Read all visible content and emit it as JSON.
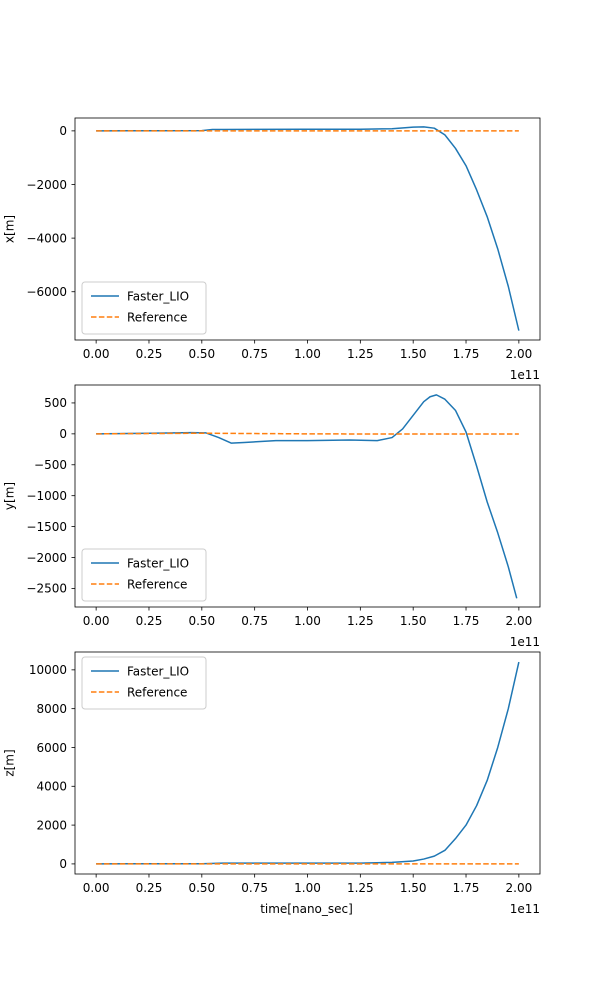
{
  "chart_data": [
    {
      "type": "line",
      "xlabel": "",
      "ylabel": "x[m]",
      "offset_text": "1e11",
      "xlim": [
        -0.1,
        2.1
      ],
      "ylim": [
        -7800,
        480
      ],
      "xticks": [
        0.0,
        0.25,
        0.5,
        0.75,
        1.0,
        1.25,
        1.5,
        1.75,
        2.0
      ],
      "xtick_labels": [
        "0.00",
        "0.25",
        "0.50",
        "0.75",
        "1.00",
        "1.25",
        "1.50",
        "1.75",
        "2.00"
      ],
      "yticks": [
        0,
        -2000,
        -4000,
        -6000
      ],
      "ytick_labels": [
        "0",
        "−2000",
        "−4000",
        "−6000"
      ],
      "legend_position": "lower-left",
      "series": [
        {
          "name": "Faster_LIO",
          "color": "#1f77b4",
          "style": "solid",
          "x": [
            0.0,
            0.25,
            0.5,
            0.55,
            0.6,
            0.75,
            1.0,
            1.25,
            1.4,
            1.5,
            1.55,
            1.6,
            1.65,
            1.7,
            1.75,
            1.8,
            1.85,
            1.9,
            1.95,
            2.0
          ],
          "y": [
            0,
            5,
            10,
            50,
            50,
            55,
            60,
            60,
            80,
            140,
            150,
            100,
            -150,
            -650,
            -1300,
            -2200,
            -3200,
            -4400,
            -5800,
            -7450
          ]
        },
        {
          "name": "Reference",
          "color": "#ff7f0e",
          "style": "dashed",
          "x": [
            0.0,
            0.5,
            1.0,
            1.5,
            2.0
          ],
          "y": [
            0,
            0,
            0,
            0,
            0
          ]
        }
      ]
    },
    {
      "type": "line",
      "xlabel": "",
      "ylabel": "y[m]",
      "offset_text": "1e11",
      "xlim": [
        -0.1,
        2.1
      ],
      "ylim": [
        -2800,
        790
      ],
      "xticks": [
        0.0,
        0.25,
        0.5,
        0.75,
        1.0,
        1.25,
        1.5,
        1.75,
        2.0
      ],
      "xtick_labels": [
        "0.00",
        "0.25",
        "0.50",
        "0.75",
        "1.00",
        "1.25",
        "1.50",
        "1.75",
        "2.00"
      ],
      "yticks": [
        500,
        0,
        -500,
        -1000,
        -1500,
        -2000,
        -2500
      ],
      "ytick_labels": [
        "500",
        "0",
        "−500",
        "−1000",
        "−1500",
        "−2000",
        "−2500"
      ],
      "legend_position": "lower-left",
      "series": [
        {
          "name": "Faster_LIO",
          "color": "#1f77b4",
          "style": "solid",
          "x": [
            0.0,
            0.25,
            0.45,
            0.52,
            0.58,
            0.64,
            0.7,
            0.85,
            1.0,
            1.2,
            1.33,
            1.4,
            1.45,
            1.5,
            1.55,
            1.58,
            1.61,
            1.65,
            1.7,
            1.75,
            1.8,
            1.85,
            1.9,
            1.95,
            1.99
          ],
          "y": [
            0,
            10,
            20,
            15,
            -60,
            -150,
            -140,
            -110,
            -110,
            -100,
            -110,
            -60,
            80,
            300,
            520,
            600,
            630,
            560,
            380,
            30,
            -520,
            -1100,
            -1600,
            -2150,
            -2660
          ]
        },
        {
          "name": "Reference",
          "color": "#ff7f0e",
          "style": "dashed",
          "x": [
            0.0,
            0.25,
            0.5,
            0.75,
            1.0,
            1.25,
            1.5,
            1.75,
            2.0
          ],
          "y": [
            0,
            5,
            10,
            5,
            0,
            -2,
            -3,
            -3,
            -3
          ]
        }
      ]
    },
    {
      "type": "line",
      "xlabel": "time[nano_sec]",
      "ylabel": "z[m]",
      "offset_text": "1e11",
      "xlim": [
        -0.1,
        2.1
      ],
      "ylim": [
        -520,
        10920
      ],
      "xticks": [
        0.0,
        0.25,
        0.5,
        0.75,
        1.0,
        1.25,
        1.5,
        1.75,
        2.0
      ],
      "xtick_labels": [
        "0.00",
        "0.25",
        "0.50",
        "0.75",
        "1.00",
        "1.25",
        "1.50",
        "1.75",
        "2.00"
      ],
      "yticks": [
        0,
        2000,
        4000,
        6000,
        8000,
        10000
      ],
      "ytick_labels": [
        "0",
        "2000",
        "4000",
        "6000",
        "8000",
        "10000"
      ],
      "legend_position": "upper-left",
      "series": [
        {
          "name": "Faster_LIO",
          "color": "#1f77b4",
          "style": "solid",
          "x": [
            0.0,
            0.25,
            0.5,
            0.6,
            0.75,
            1.0,
            1.25,
            1.4,
            1.5,
            1.55,
            1.6,
            1.65,
            1.7,
            1.75,
            1.8,
            1.85,
            1.9,
            1.95,
            2.0
          ],
          "y": [
            0,
            10,
            10,
            40,
            40,
            40,
            40,
            80,
            150,
            250,
            400,
            700,
            1300,
            2000,
            3000,
            4300,
            6000,
            8000,
            10400
          ]
        },
        {
          "name": "Reference",
          "color": "#ff7f0e",
          "style": "dashed",
          "x": [
            0.0,
            0.5,
            1.0,
            1.5,
            2.0
          ],
          "y": [
            0,
            0,
            0,
            0,
            0
          ]
        }
      ]
    }
  ]
}
